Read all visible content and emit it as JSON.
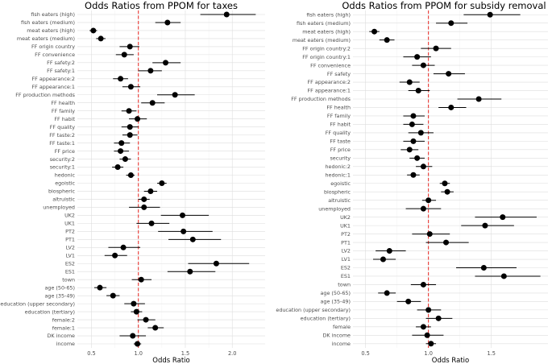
{
  "chart_data": [
    {
      "type": "forest",
      "title": "Odds Ratios from PPOM for taxes",
      "xlabel": "Odds Ratio",
      "xlim": [
        0.35,
        2.35
      ],
      "xticks": [
        0.5,
        1.0,
        1.5,
        2.0
      ],
      "xtick_labels": [
        "0.5",
        "1.0",
        "1.5",
        "2.0"
      ],
      "reference_line": 1.0,
      "categories": [
        "fish eaters (high)",
        "fish eaters (medium)",
        "meat eaters (high)",
        "meat eaters (medium)",
        "FF origin country",
        "FF convenience",
        "FF safety:2",
        "FF safety:1",
        "FF appearance:2",
        "FF appearance:1",
        "FF production methods",
        "FF health",
        "FF family",
        "FF habit",
        "FF quality",
        "FF taste:2",
        "FF taste:1",
        "FF price",
        "security:2",
        "security:1",
        "hedonic",
        "egoistic",
        "biospheric",
        "altruistic",
        "unemployed",
        "UK2",
        "UK1",
        "PT2",
        "PT1",
        "LV2",
        "LV1",
        "ES2",
        "ES1",
        "town",
        "age (50-65)",
        "age (35-49)",
        "education (upper secondary)",
        "education (tertiary)",
        "female:2",
        "female:1",
        "DK income",
        "income"
      ],
      "estimates": [
        1.94,
        1.31,
        0.52,
        0.6,
        0.91,
        0.85,
        1.29,
        1.13,
        0.81,
        0.92,
        1.39,
        1.15,
        0.9,
        0.99,
        0.91,
        0.91,
        0.82,
        0.81,
        0.86,
        0.78,
        0.92,
        1.25,
        1.13,
        1.06,
        1.06,
        1.47,
        1.14,
        1.48,
        1.58,
        0.84,
        0.75,
        1.83,
        1.55,
        1.03,
        0.59,
        0.73,
        0.95,
        0.98,
        1.08,
        1.18,
        0.94,
        0.99
      ],
      "ci_lower": [
        1.66,
        1.18,
        0.48,
        0.55,
        0.8,
        0.76,
        1.15,
        1.0,
        0.73,
        0.83,
        1.2,
        1.03,
        0.82,
        0.9,
        0.82,
        0.83,
        0.74,
        0.74,
        0.8,
        0.72,
        0.87,
        1.2,
        1.06,
        1.0,
        0.9,
        1.24,
        0.98,
        1.21,
        1.32,
        0.68,
        0.64,
        1.53,
        1.31,
        0.93,
        0.53,
        0.66,
        0.85,
        0.92,
        0.99,
        1.1,
        0.8,
        0.95
      ],
      "ci_upper": [
        2.25,
        1.45,
        0.56,
        0.65,
        1.01,
        0.95,
        1.45,
        1.25,
        0.89,
        1.02,
        1.6,
        1.28,
        0.98,
        1.09,
        1.0,
        0.99,
        0.91,
        0.9,
        0.92,
        0.84,
        0.96,
        1.3,
        1.2,
        1.12,
        1.23,
        1.75,
        1.33,
        1.79,
        1.88,
        1.02,
        0.88,
        2.18,
        1.82,
        1.14,
        0.66,
        0.8,
        1.07,
        1.04,
        1.18,
        1.27,
        1.08,
        1.03
      ]
    },
    {
      "type": "forest",
      "title": "Odds Ratios from PPOM for subsidy removal",
      "xlabel": "Odds Ratio",
      "xlim": [
        0.4,
        1.95
      ],
      "xticks": [
        0.5,
        1.0,
        1.5
      ],
      "xtick_labels": [
        "0.5",
        "1.0",
        "1.5"
      ],
      "reference_line": 1.0,
      "categories": [
        "fish eaters (high)",
        "fish eaters (medium)",
        "meat eaters (high)",
        "meat eaters (medium)",
        "FF origin country:2",
        "FF origin country:1",
        "FF convenience",
        "FF safety",
        "FF appearance:2",
        "FF appearance:1",
        "FF production methods",
        "FF health",
        "FF family",
        "FF habit",
        "FF quality",
        "FF taste",
        "FF price",
        "security",
        "hedonic:2",
        "hedonic:1",
        "egoistic",
        "biospheric",
        "altruistic",
        "unemployed",
        "UK2",
        "UK1",
        "PT2",
        "PT1",
        "LV2",
        "LV1",
        "ES2",
        "ES1",
        "town",
        "age (50-65)",
        "age (35-49)",
        "education (upper secondary)",
        "education (tertiary)",
        "female",
        "DK income",
        "income"
      ],
      "estimates": [
        1.49,
        1.18,
        0.57,
        0.67,
        1.06,
        0.91,
        0.96,
        1.16,
        0.85,
        0.92,
        1.4,
        1.18,
        0.88,
        0.87,
        0.94,
        0.88,
        0.85,
        0.91,
        0.96,
        0.88,
        1.13,
        1.15,
        1.0,
        0.96,
        1.59,
        1.45,
        1.01,
        1.14,
        0.69,
        0.64,
        1.44,
        1.6,
        0.96,
        0.67,
        0.84,
        1.0,
        1.08,
        0.96,
        0.99,
        1.02
      ],
      "ci_lower": [
        1.28,
        1.06,
        0.53,
        0.61,
        0.94,
        0.8,
        0.87,
        1.04,
        0.77,
        0.84,
        1.23,
        1.08,
        0.8,
        0.8,
        0.84,
        0.8,
        0.78,
        0.85,
        0.9,
        0.83,
        1.09,
        1.1,
        0.95,
        0.82,
        1.37,
        1.26,
        0.87,
        0.98,
        0.58,
        0.56,
        1.22,
        1.37,
        0.86,
        0.6,
        0.75,
        0.91,
        0.98,
        0.9,
        0.87,
        0.98
      ],
      "ci_upper": [
        1.73,
        1.31,
        0.61,
        0.73,
        1.18,
        1.02,
        1.05,
        1.29,
        0.93,
        1.01,
        1.58,
        1.3,
        0.97,
        0.96,
        1.04,
        0.97,
        0.92,
        0.97,
        1.03,
        0.93,
        1.17,
        1.2,
        1.06,
        1.1,
        1.86,
        1.68,
        1.17,
        1.32,
        0.82,
        0.74,
        1.7,
        1.89,
        1.06,
        0.74,
        0.94,
        1.1,
        1.19,
        1.02,
        1.12,
        1.06
      ]
    }
  ]
}
